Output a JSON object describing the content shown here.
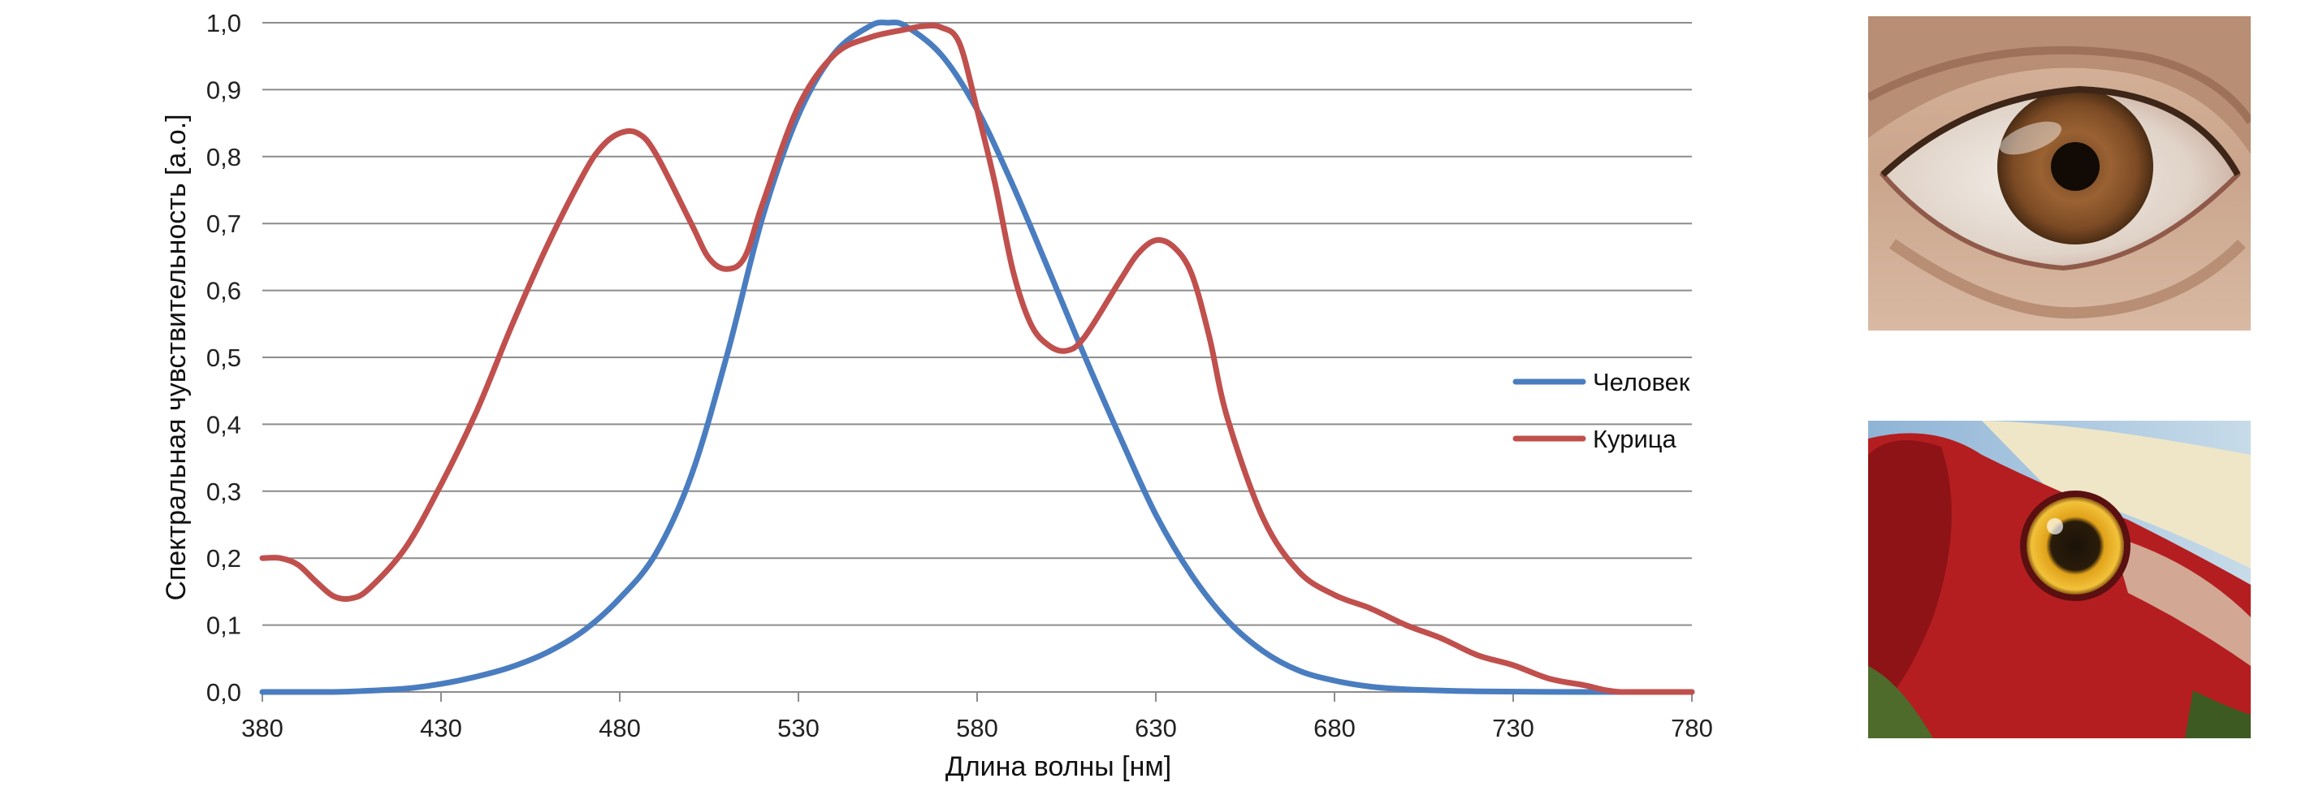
{
  "chart_data": {
    "type": "line",
    "title": "",
    "xlabel": "Длина волны [нм]",
    "ylabel": "Спектральная чувствительность  [a.o.]",
    "xlim": [
      380,
      780
    ],
    "ylim": [
      0,
      1
    ],
    "x_ticks": [
      "380",
      "430",
      "480",
      "530",
      "580",
      "630",
      "680",
      "730",
      "780"
    ],
    "y_ticks": [
      "0,0",
      "0,1",
      "0,2",
      "0,3",
      "0,4",
      "0,5",
      "0,6",
      "0,7",
      "0,8",
      "0,9",
      "1,0"
    ],
    "grid": "horizontal",
    "legend_position": "right",
    "series": [
      {
        "name": "Человек",
        "color": "#4a7dc0",
        "points": [
          [
            380,
            0.0
          ],
          [
            400,
            0.0
          ],
          [
            410,
            0.002
          ],
          [
            420,
            0.005
          ],
          [
            430,
            0.012
          ],
          [
            440,
            0.023
          ],
          [
            450,
            0.038
          ],
          [
            460,
            0.06
          ],
          [
            470,
            0.092
          ],
          [
            480,
            0.14
          ],
          [
            490,
            0.206
          ],
          [
            500,
            0.323
          ],
          [
            510,
            0.503
          ],
          [
            520,
            0.71
          ],
          [
            530,
            0.862
          ],
          [
            540,
            0.954
          ],
          [
            550,
            0.995
          ],
          [
            555,
            1.0
          ],
          [
            560,
            0.995
          ],
          [
            570,
            0.952
          ],
          [
            580,
            0.87
          ],
          [
            590,
            0.757
          ],
          [
            600,
            0.631
          ],
          [
            610,
            0.503
          ],
          [
            620,
            0.381
          ],
          [
            630,
            0.265
          ],
          [
            640,
            0.175
          ],
          [
            650,
            0.107
          ],
          [
            660,
            0.061
          ],
          [
            670,
            0.032
          ],
          [
            680,
            0.017
          ],
          [
            690,
            0.008
          ],
          [
            700,
            0.004
          ],
          [
            720,
            0.001
          ],
          [
            750,
            0.0
          ],
          [
            780,
            0.0
          ]
        ]
      },
      {
        "name": "Курица",
        "color": "#c0504d",
        "points": [
          [
            380,
            0.2
          ],
          [
            385,
            0.2
          ],
          [
            390,
            0.19
          ],
          [
            395,
            0.165
          ],
          [
            400,
            0.143
          ],
          [
            405,
            0.14
          ],
          [
            410,
            0.155
          ],
          [
            420,
            0.215
          ],
          [
            430,
            0.31
          ],
          [
            440,
            0.42
          ],
          [
            450,
            0.55
          ],
          [
            460,
            0.67
          ],
          [
            470,
            0.775
          ],
          [
            475,
            0.815
          ],
          [
            480,
            0.835
          ],
          [
            485,
            0.835
          ],
          [
            490,
            0.805
          ],
          [
            500,
            0.7
          ],
          [
            505,
            0.648
          ],
          [
            510,
            0.632
          ],
          [
            515,
            0.65
          ],
          [
            520,
            0.73
          ],
          [
            530,
            0.875
          ],
          [
            540,
            0.952
          ],
          [
            550,
            0.978
          ],
          [
            560,
            0.99
          ],
          [
            565,
            0.995
          ],
          [
            570,
            0.993
          ],
          [
            575,
            0.97
          ],
          [
            580,
            0.87
          ],
          [
            585,
            0.76
          ],
          [
            590,
            0.63
          ],
          [
            595,
            0.55
          ],
          [
            600,
            0.518
          ],
          [
            605,
            0.51
          ],
          [
            610,
            0.53
          ],
          [
            620,
            0.615
          ],
          [
            625,
            0.655
          ],
          [
            630,
            0.675
          ],
          [
            635,
            0.665
          ],
          [
            640,
            0.625
          ],
          [
            645,
            0.53
          ],
          [
            650,
            0.41
          ],
          [
            660,
            0.26
          ],
          [
            670,
            0.18
          ],
          [
            680,
            0.145
          ],
          [
            690,
            0.125
          ],
          [
            700,
            0.1
          ],
          [
            710,
            0.08
          ],
          [
            720,
            0.055
          ],
          [
            730,
            0.04
          ],
          [
            740,
            0.02
          ],
          [
            750,
            0.01
          ],
          [
            760,
            0.0
          ],
          [
            780,
            0.0
          ]
        ]
      }
    ]
  },
  "photos": {
    "top": "human-eye",
    "bottom": "chicken-eye"
  }
}
